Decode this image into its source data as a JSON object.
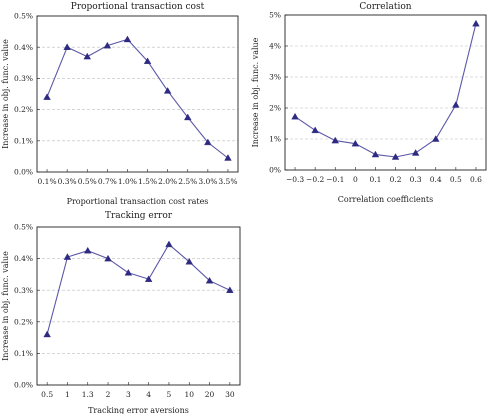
{
  "chart_data": [
    {
      "type": "line",
      "title": "Proportional transaction cost",
      "xlabel": "Proportional transaction cost rates",
      "ylabel": "Increase in obj. func. value",
      "categories": [
        "0.1%",
        "0.3%",
        "0.5%",
        "0.7%",
        "1.0%",
        "1.5%",
        "2.0%",
        "2.5%",
        "3.0%",
        "3.5%"
      ],
      "values": [
        0.24,
        0.4,
        0.37,
        0.405,
        0.425,
        0.355,
        0.26,
        0.175,
        0.095,
        0.045
      ],
      "ylim": [
        0,
        0.5
      ],
      "yticks": [
        "0.0%",
        "0.1%",
        "0.2%",
        "0.3%",
        "0.4%",
        "0.5%"
      ],
      "grid": true,
      "marker": "triangle",
      "color": "#2e2a82"
    },
    {
      "type": "line",
      "title": "Correlation",
      "xlabel": "Correlation coefficients",
      "ylabel": "Increase in obj. func. value",
      "categories": [
        "−0.3",
        "−0.2",
        "−0.1",
        "0",
        "0.1",
        "0.2",
        "0.3",
        "0.4",
        "0.5",
        "0.6"
      ],
      "values": [
        1.72,
        1.28,
        0.95,
        0.85,
        0.5,
        0.42,
        0.55,
        1.0,
        2.1,
        4.72
      ],
      "ylim": [
        0,
        5
      ],
      "yticks": [
        "0%",
        "1%",
        "2%",
        "3%",
        "4%",
        "5%"
      ],
      "grid": true,
      "marker": "triangle",
      "color": "#2e2a82"
    },
    {
      "type": "line",
      "title": "Tracking error",
      "xlabel": "Tracking error aversions",
      "ylabel": "Increase in obj. func. value",
      "categories": [
        "0.5",
        "1",
        "1.3",
        "2",
        "3",
        "4",
        "5",
        "10",
        "20",
        "30"
      ],
      "values": [
        0.16,
        0.405,
        0.425,
        0.4,
        0.355,
        0.335,
        0.445,
        0.39,
        0.33,
        0.3
      ],
      "ylim": [
        0,
        0.5
      ],
      "yticks": [
        "0.0%",
        "0.1%",
        "0.2%",
        "0.3%",
        "0.4%",
        "0.5%"
      ],
      "grid": true,
      "marker": "triangle",
      "color": "#2e2a82"
    }
  ]
}
